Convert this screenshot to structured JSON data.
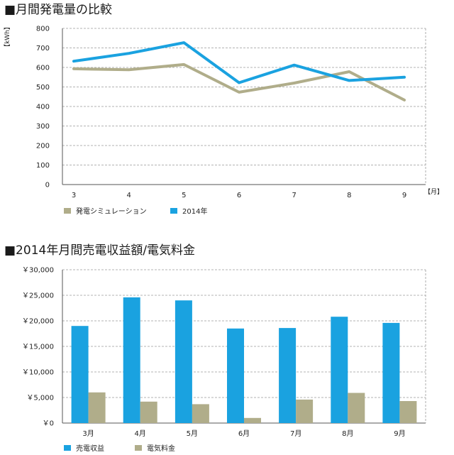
{
  "chart_data": [
    {
      "type": "line",
      "title": "■月間発電量の比較",
      "ylabel": "【kWh】",
      "xlabel": "【月】",
      "categories": [
        "3",
        "4",
        "5",
        "6",
        "7",
        "8",
        "9"
      ],
      "ylim": [
        0,
        800
      ],
      "yticks": [
        "0",
        "100",
        "200",
        "300",
        "400",
        "500",
        "600",
        "700",
        "800"
      ],
      "grid": true,
      "legend_position": "bottom-left",
      "series": [
        {
          "name": "発電シミュレーション",
          "color": "#b0ad8a",
          "values": [
            593,
            588,
            615,
            473,
            520,
            578,
            433
          ]
        },
        {
          "name": "2014年",
          "color": "#1aa2e0",
          "values": [
            632,
            672,
            727,
            522,
            612,
            533,
            550
          ]
        }
      ]
    },
    {
      "type": "bar",
      "title": "■2014年月間売電収益額/電気料金",
      "categories": [
        "3月",
        "4月",
        "5月",
        "6月",
        "7月",
        "8月",
        "9月"
      ],
      "ylim": [
        0,
        30000
      ],
      "yticks": [
        "￥0",
        "￥5,000",
        "￥10,000",
        "￥15,000",
        "￥20,000",
        "￥25,000",
        "￥30,000"
      ],
      "grid": true,
      "legend_position": "bottom-left",
      "series": [
        {
          "name": "売電収益",
          "color": "#1aa2e0",
          "values": [
            19000,
            24600,
            24000,
            18500,
            18600,
            20800,
            19600
          ]
        },
        {
          "name": "電気料金",
          "color": "#b0ad8a",
          "values": [
            6000,
            4200,
            3700,
            1000,
            4600,
            5900,
            4300
          ]
        }
      ]
    }
  ]
}
